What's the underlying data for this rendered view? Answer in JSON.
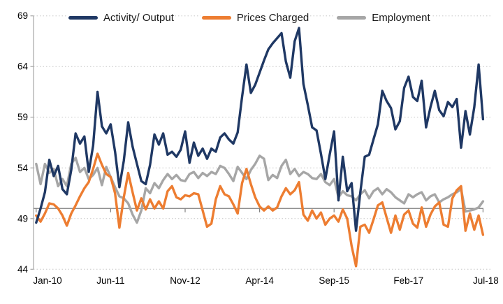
{
  "chart_data": {
    "type": "line",
    "title": "",
    "xlabel": "",
    "ylabel": "",
    "x_axis": {
      "start": "Jan-10",
      "end": "Jul-18",
      "interval": "monthly",
      "points": 103,
      "tick_labels": [
        "Jan-10",
        "Jun-11",
        "Nov-12",
        "Apr-14",
        "Sep-15",
        "Feb-17",
        "Jul-18"
      ],
      "tick_months": [
        0,
        17,
        34,
        51,
        68,
        85,
        102
      ]
    },
    "ylim": [
      44,
      69
    ],
    "yticks": [
      44,
      49,
      54,
      59,
      64,
      69
    ],
    "reference_line": 50,
    "grid": "dotted-horizontal",
    "legend_position": "top-center",
    "series": [
      {
        "name": "Activity/ Output",
        "color": "#1F3864",
        "values": [
          48.6,
          50.0,
          51.6,
          54.8,
          53.2,
          54.2,
          51.9,
          51.4,
          53.8,
          57.4,
          56.4,
          57.1,
          53.6,
          56.2,
          61.5,
          58.1,
          57.4,
          58.3,
          55.6,
          52.1,
          54.7,
          58.5,
          56.1,
          54.4,
          52.7,
          52.4,
          54.3,
          57.3,
          56.3,
          57.4,
          55.3,
          55.6,
          55.1,
          55.8,
          57.6,
          54.5,
          56.5,
          55.2,
          55.9,
          54.9,
          55.9,
          55.6,
          57.0,
          57.4,
          56.8,
          56.4,
          57.5,
          61.0,
          64.2,
          61.4,
          62.2,
          63.4,
          64.6,
          65.7,
          66.3,
          66.8,
          67.3,
          64.5,
          62.9,
          66.5,
          67.8,
          62.3,
          60.2,
          58.0,
          57.7,
          55.4,
          52.9,
          55.3,
          57.6,
          50.8,
          55.1,
          51.7,
          52.5,
          47.8,
          51.6,
          55.1,
          55.3,
          56.8,
          58.3,
          61.6,
          60.6,
          59.9,
          57.8,
          58.6,
          61.9,
          63.0,
          61.0,
          60.6,
          62.6,
          58.0,
          60.0,
          61.6,
          59.7,
          59.1,
          60.5,
          60.0,
          60.8,
          56.0,
          59.6,
          57.3,
          60.0,
          64.2,
          58.8
        ]
      },
      {
        "name": "Prices Charged",
        "color": "#ED7D31",
        "values": [
          49.3,
          48.7,
          49.5,
          50.5,
          50.4,
          50.0,
          49.3,
          48.3,
          49.5,
          50.3,
          51.2,
          52.0,
          52.6,
          53.9,
          55.4,
          54.3,
          53.4,
          53.1,
          51.5,
          48.1,
          51.1,
          53.5,
          51.6,
          49.8,
          51.0,
          49.9,
          50.9,
          50.0,
          50.7,
          50.0,
          51.7,
          52.2,
          51.1,
          50.9,
          51.3,
          51.2,
          51.5,
          51.4,
          49.8,
          48.2,
          48.5,
          50.9,
          52.2,
          51.4,
          51.2,
          50.4,
          49.5,
          52.5,
          53.9,
          52.4,
          51.1,
          50.2,
          49.8,
          50.2,
          49.8,
          50.1,
          51.2,
          52.0,
          51.4,
          51.8,
          52.6,
          49.4,
          48.8,
          49.8,
          49.0,
          49.6,
          48.4,
          49.0,
          49.3,
          48.7,
          49.9,
          49.0,
          46.3,
          44.3,
          48.2,
          48.4,
          47.6,
          48.9,
          50.3,
          50.6,
          49.1,
          47.6,
          49.3,
          47.9,
          49.4,
          49.8,
          48.5,
          48.1,
          50.1,
          48.2,
          49.4,
          50.2,
          50.6,
          48.4,
          48.2,
          51.0,
          51.8,
          52.2,
          47.8,
          49.5,
          47.9,
          49.3,
          47.4
        ]
      },
      {
        "name": "Employment",
        "color": "#A6A6A6",
        "values": [
          54.4,
          52.4,
          54.4,
          53.5,
          53.9,
          52.2,
          52.9,
          52.2,
          54.4,
          55.0,
          53.6,
          54.0,
          52.9,
          53.3,
          54.0,
          52.3,
          54.1,
          53.1,
          52.1,
          51.2,
          51.0,
          50.5,
          49.4,
          48.6,
          49.8,
          52.0,
          51.5,
          52.5,
          52.0,
          52.8,
          53.4,
          52.9,
          53.3,
          52.8,
          52.7,
          53.4,
          53.6,
          53.0,
          53.5,
          53.2,
          53.6,
          53.4,
          54.2,
          54.0,
          53.4,
          52.7,
          54.1,
          53.5,
          52.9,
          53.8,
          54.4,
          55.2,
          54.9,
          52.8,
          53.3,
          53.0,
          54.2,
          54.8,
          53.4,
          53.9,
          53.2,
          53.6,
          53.4,
          53.0,
          52.9,
          53.4,
          52.6,
          52.3,
          52.9,
          51.1,
          51.7,
          51.3,
          51.2,
          50.8,
          51.4,
          51.8,
          51.0,
          51.7,
          52.0,
          51.4,
          51.9,
          51.6,
          51.1,
          50.8,
          50.5,
          51.4,
          51.1,
          51.4,
          51.6,
          50.8,
          51.2,
          51.4,
          50.6,
          50.9,
          51.1,
          51.4,
          51.6,
          51.9,
          49.7,
          49.8,
          49.9,
          50.1,
          50.7
        ]
      }
    ],
    "colors": {
      "gridline": "#C6C6C6",
      "axis_line": "#A6A6A6",
      "reference_line": "#808080",
      "tick_text": "#000000"
    }
  }
}
